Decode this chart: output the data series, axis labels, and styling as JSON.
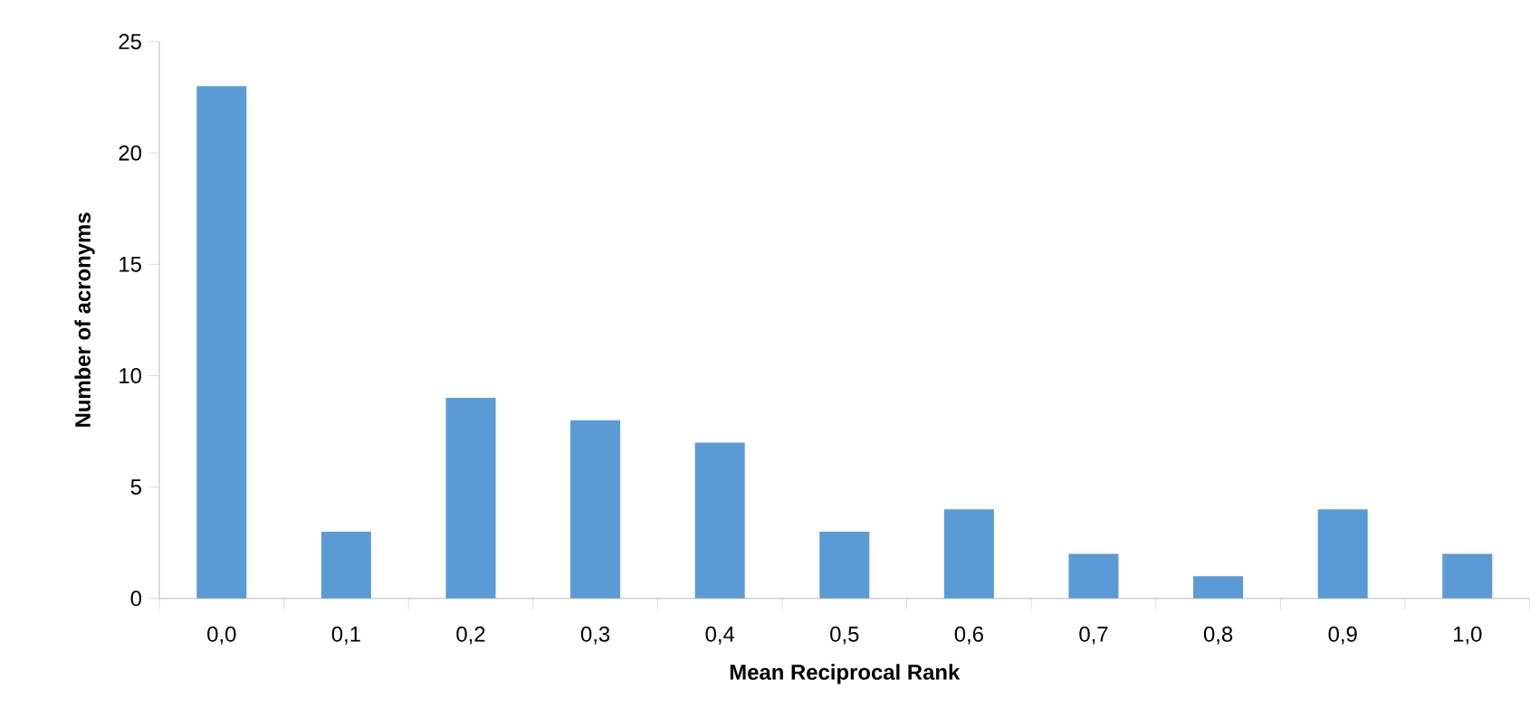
{
  "chart_data": {
    "type": "bar",
    "xlabel": "Mean Reciprocal Rank",
    "ylabel": "Number of acronyms",
    "categories": [
      "0,0",
      "0,1",
      "0,2",
      "0,3",
      "0,4",
      "0,5",
      "0,6",
      "0,7",
      "0,8",
      "0,9",
      "1,0"
    ],
    "values": [
      23,
      3,
      9,
      8,
      7,
      3,
      4,
      2,
      1,
      4,
      2
    ],
    "color": "#5b9bd5",
    "ylim": [
      0,
      25
    ],
    "yticks": [
      0,
      5,
      10,
      15,
      20,
      25
    ],
    "grid": false
  }
}
